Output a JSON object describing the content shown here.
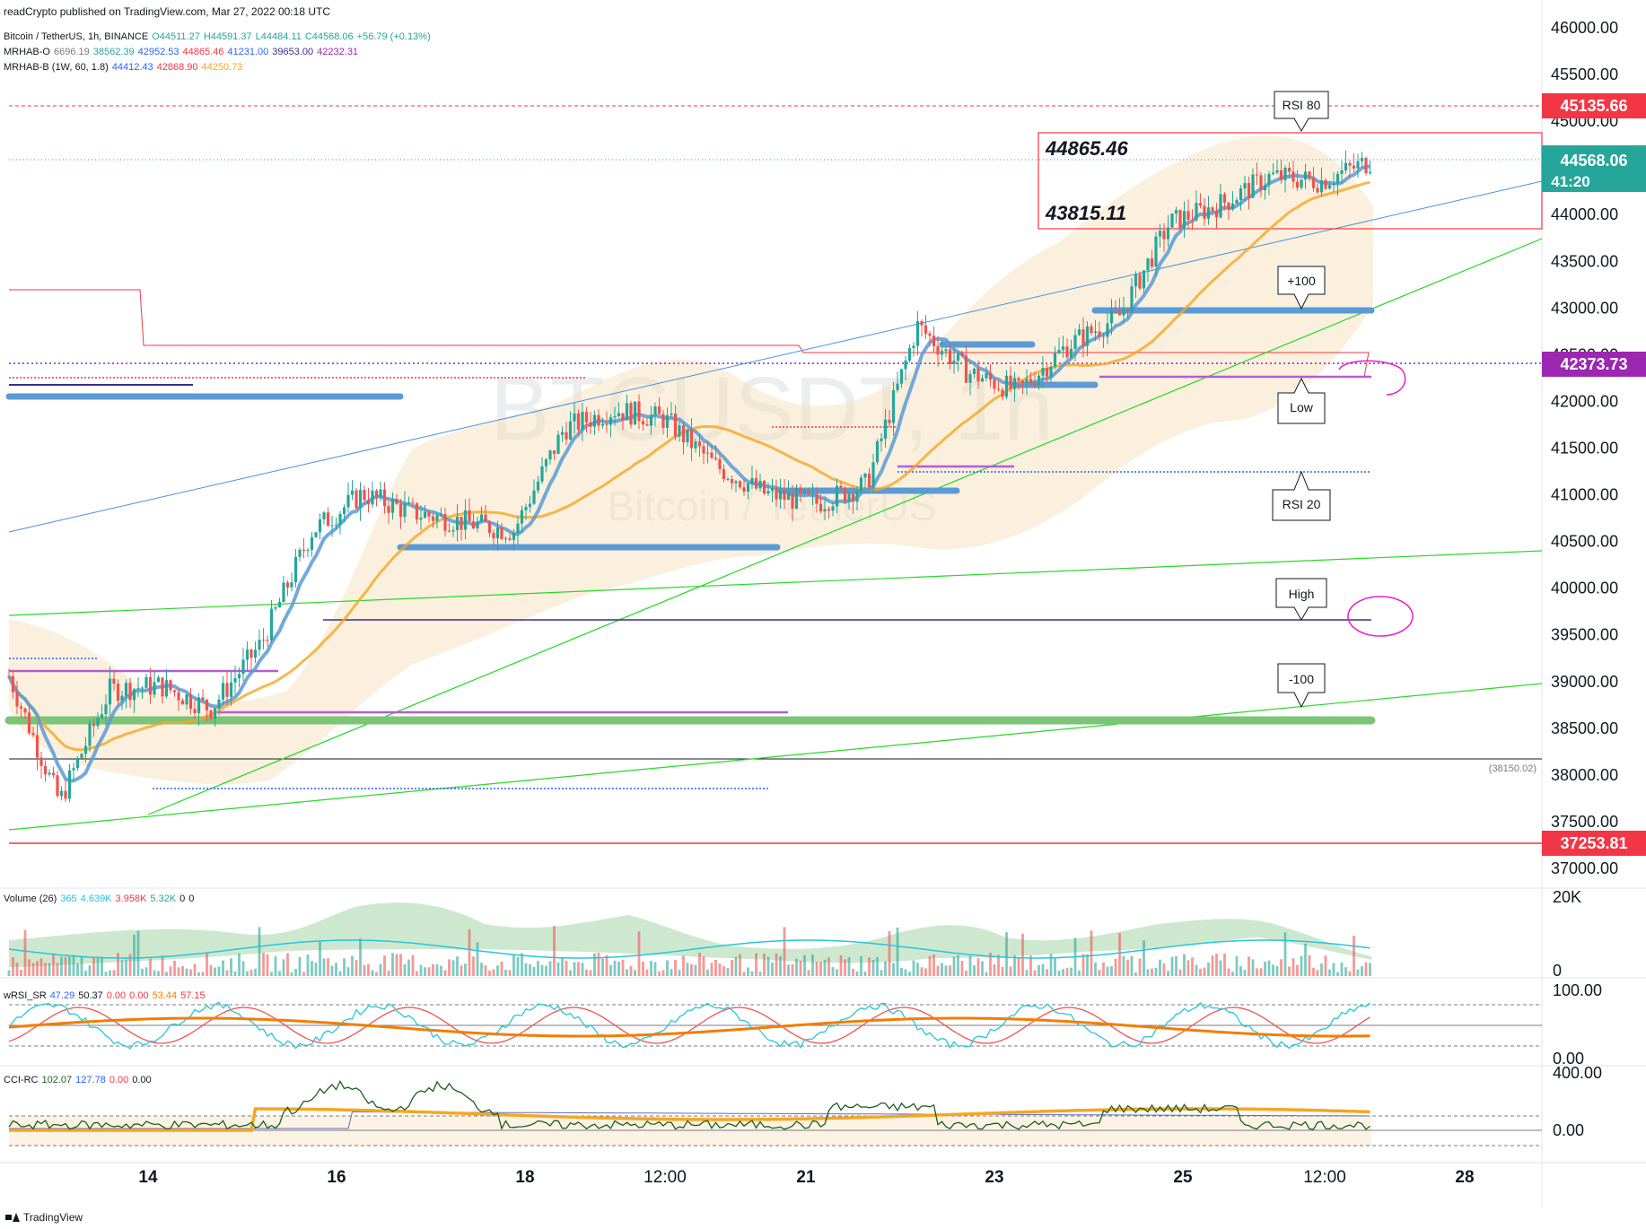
{
  "attribution": "readCrypto published on TradingView.com, Mar 27, 2022 00:18 UTC",
  "watermark": {
    "symbol": "BTCUSDT, 1h",
    "name": "Bitcoin / TetherUS"
  },
  "legend": {
    "main": {
      "title": "Bitcoin / TetherUS, 1h, BINANCE",
      "o": "O44511.27",
      "h": "H44591.37",
      "l": "L44484.11",
      "c": "C44568.06",
      "chg": "+56.79 (+0.13%)"
    },
    "mrhab_o": {
      "label": "MRHAB-O",
      "v1": "6696.19",
      "v2": "38562.39",
      "v3": "42952.53",
      "v4": "44865.46",
      "v5": "41231.00",
      "v6": "39653.00",
      "v7": "42232.31"
    },
    "mrhab_b": {
      "label": "MRHAB-B (1W, 60, 1.8)",
      "v1": "44412.43",
      "v2": "42868.90",
      "v3": "44250.73"
    },
    "volume": {
      "label": "Volume (26)",
      "v1": "365",
      "v2": "4.639K",
      "v3": "3.958K",
      "v4": "5.32K",
      "v5": "0",
      "v6": "0"
    },
    "wrsi": {
      "label": "wRSI_SR",
      "v1": "47.29",
      "v2": "50.37",
      "v3": "0.00",
      "v4": "0.00",
      "v5": "53.44",
      "v6": "57.15"
    },
    "cci": {
      "label": "CCI-RC",
      "v1": "102.07",
      "v2": "127.78",
      "v3": "0.00",
      "v4": "0.00"
    }
  },
  "price_axis": {
    "ticks": [
      "46000.00",
      "45500.00",
      "45000.00",
      "44500.00",
      "44000.00",
      "43500.00",
      "43000.00",
      "42500.00",
      "42000.00",
      "41500.00",
      "41000.00",
      "40500.00",
      "40000.00",
      "39500.00",
      "39000.00",
      "38500.00",
      "38000.00",
      "37500.00",
      "37000.00"
    ],
    "tag_45135": "45135.66",
    "tag_price": "44568.06",
    "tag_countdown": "41:20",
    "tag_42373": "42373.73",
    "tag_37253": "37253.81",
    "ref_label": "(38150.02)"
  },
  "volume_axis": [
    "20K",
    "0"
  ],
  "wrsi_axis": [
    "100.00",
    "0.00"
  ],
  "cci_axis": [
    "400.00",
    "0.00"
  ],
  "time_axis": [
    "14",
    "16",
    "18",
    "12:00",
    "21",
    "23",
    "25",
    "12:00",
    "28"
  ],
  "annotations": {
    "box_high": "44865.46",
    "box_low": "43815.11",
    "rsi80": "RSI 80",
    "plus100": "+100",
    "low": "Low",
    "rsi20": "RSI 20",
    "high": "High",
    "minus100": "-100"
  },
  "branding": "TradingView",
  "colors": {
    "up": "#26a69a",
    "down": "#ef5350",
    "blue_band": "#5b9bd5",
    "orange_ma": "#f5a623",
    "green_line": "#27d827",
    "purple": "#9b4dca",
    "tag_red": "#f23645",
    "tag_teal": "#26a69a",
    "tag_purple": "#9c27b0",
    "magenta": "#e91ecd"
  },
  "chart_data": {
    "type": "line",
    "symbol": "BTCUSDT",
    "interval": "1h",
    "exchange": "BINANCE",
    "x_range": [
      "2022-03-13",
      "2022-03-28"
    ],
    "ylim": [
      36800,
      46100
    ],
    "price_points": [
      {
        "x": "2022-03-13 12:00",
        "y": 39050
      },
      {
        "x": "2022-03-14 00:00",
        "y": 37700
      },
      {
        "x": "2022-03-14 12:00",
        "y": 38900
      },
      {
        "x": "2022-03-15 00:00",
        "y": 38950
      },
      {
        "x": "2022-03-15 12:00",
        "y": 38700
      },
      {
        "x": "2022-03-16 00:00",
        "y": 39400
      },
      {
        "x": "2022-03-16 12:00",
        "y": 40600
      },
      {
        "x": "2022-03-17 00:00",
        "y": 41000
      },
      {
        "x": "2022-03-17 12:00",
        "y": 40800
      },
      {
        "x": "2022-03-18 00:00",
        "y": 40700
      },
      {
        "x": "2022-03-18 12:00",
        "y": 40600
      },
      {
        "x": "2022-03-19 00:00",
        "y": 41700
      },
      {
        "x": "2022-03-19 12:00",
        "y": 41900
      },
      {
        "x": "2022-03-20 00:00",
        "y": 41800
      },
      {
        "x": "2022-03-20 12:00",
        "y": 41300
      },
      {
        "x": "2022-03-21 00:00",
        "y": 41000
      },
      {
        "x": "2022-03-21 12:00",
        "y": 40900
      },
      {
        "x": "2022-03-22 00:00",
        "y": 41100
      },
      {
        "x": "2022-03-22 12:00",
        "y": 42800
      },
      {
        "x": "2022-03-23 00:00",
        "y": 42300
      },
      {
        "x": "2022-03-23 12:00",
        "y": 42100
      },
      {
        "x": "2022-03-24 00:00",
        "y": 42600
      },
      {
        "x": "2022-03-24 12:00",
        "y": 42900
      },
      {
        "x": "2022-03-25 00:00",
        "y": 43900
      },
      {
        "x": "2022-03-25 12:00",
        "y": 44100
      },
      {
        "x": "2022-03-26 00:00",
        "y": 44400
      },
      {
        "x": "2022-03-26 12:00",
        "y": 44350
      },
      {
        "x": "2022-03-27 00:00",
        "y": 44568
      }
    ],
    "levels": [
      45135.66,
      44865.46,
      43815.11,
      42373.73,
      38150.02,
      37253.81
    ]
  }
}
